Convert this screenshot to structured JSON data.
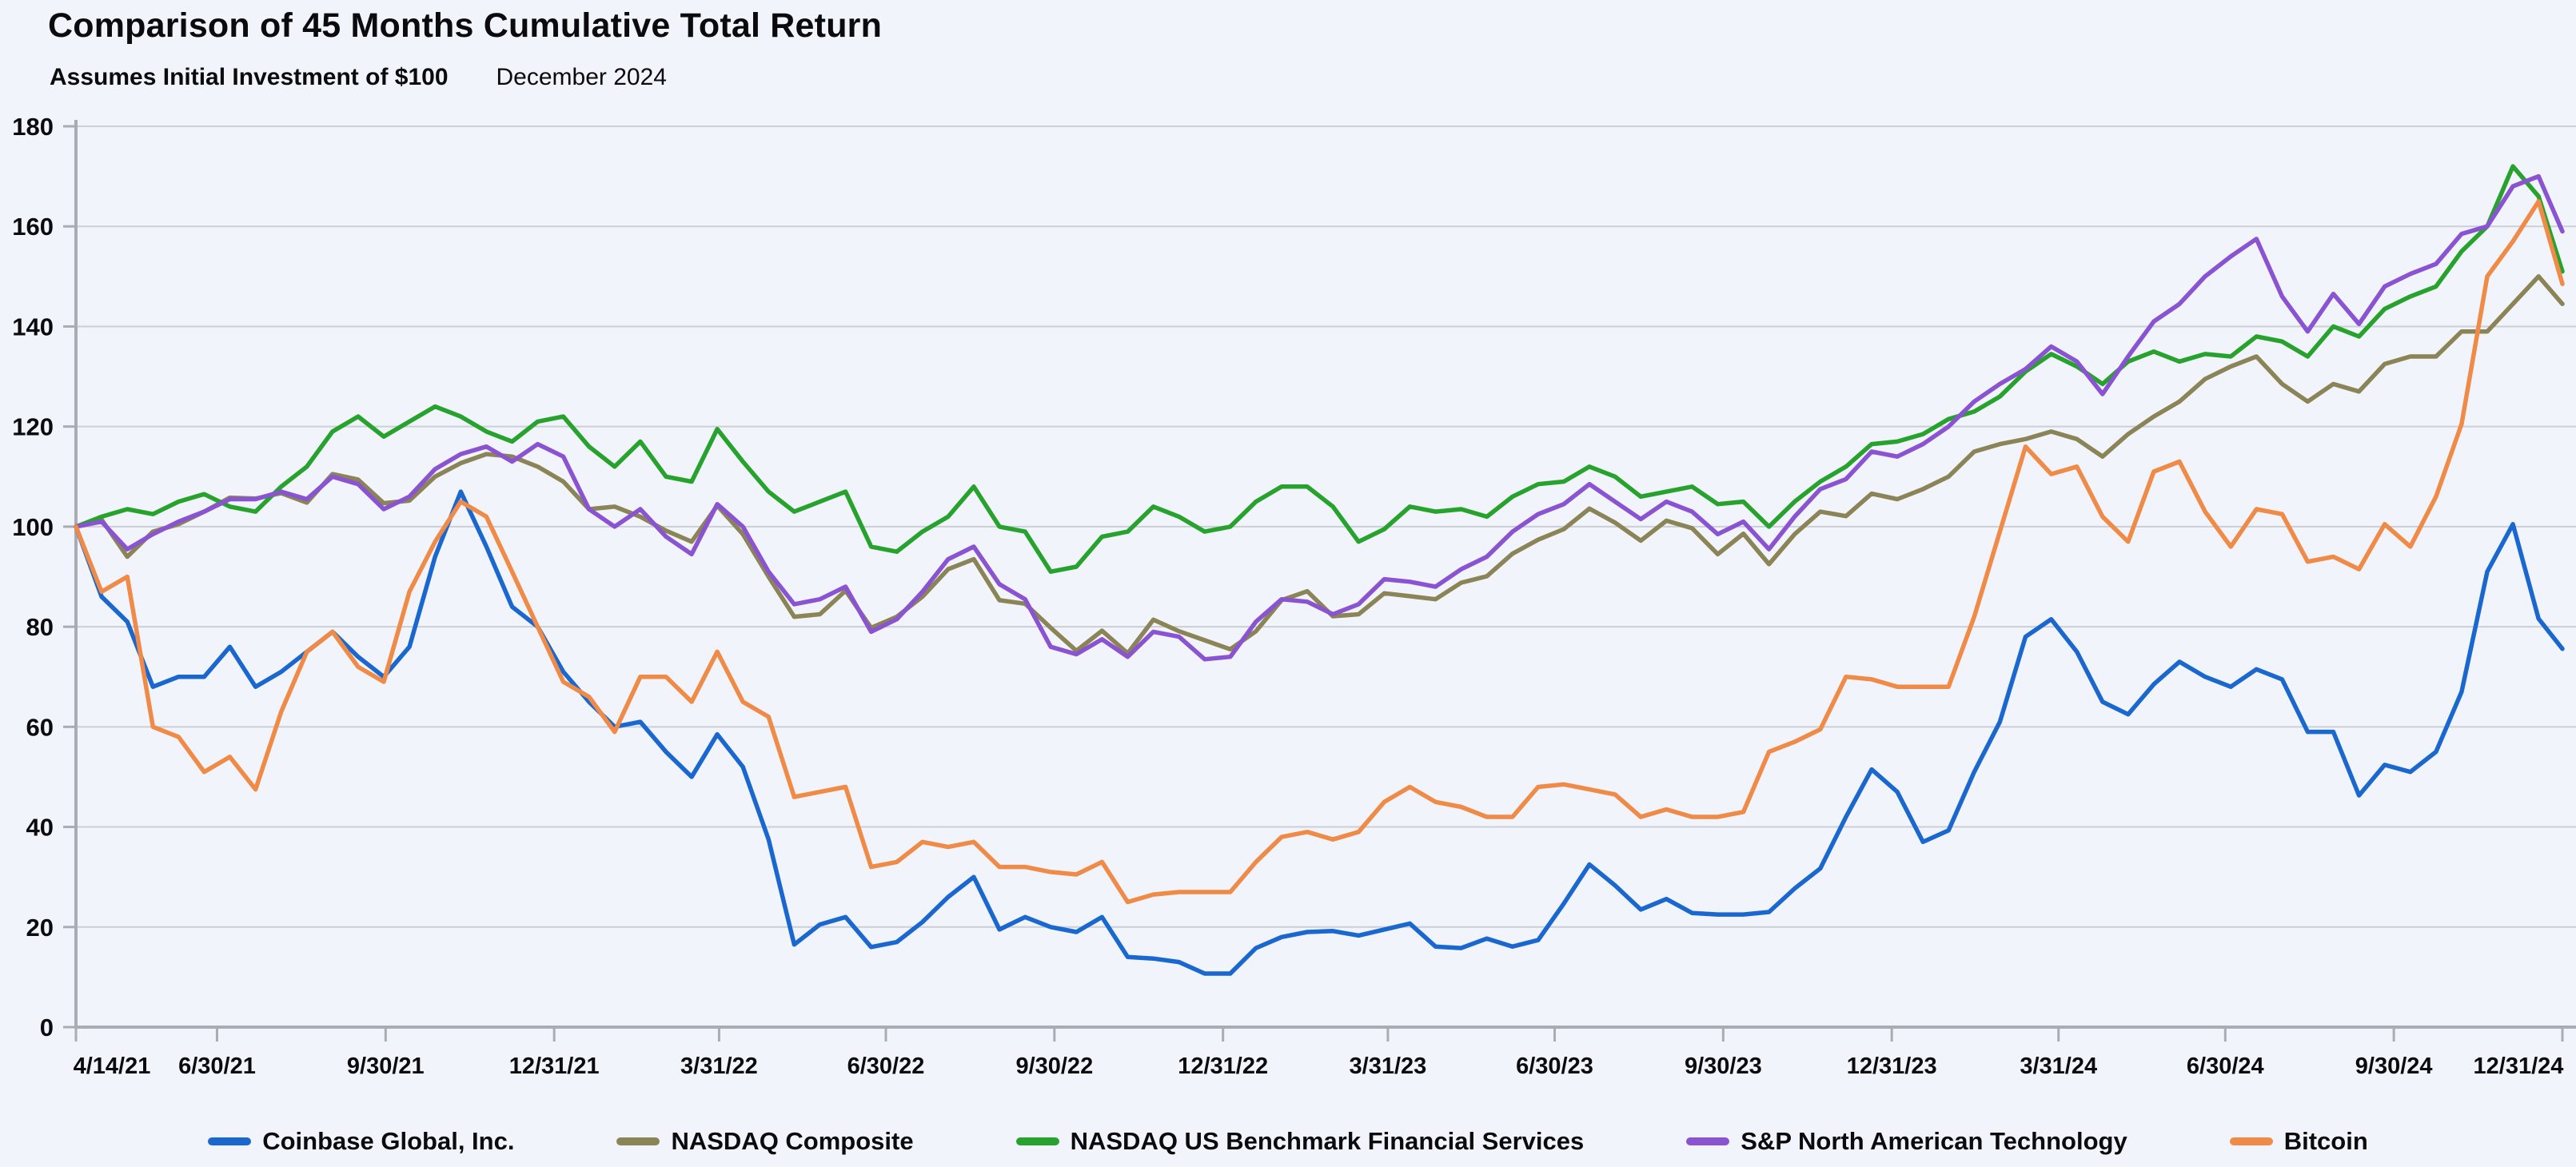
{
  "page": {
    "background": "#F1F4FB"
  },
  "header": {
    "title": "Comparison of 45 Months Cumulative Total Return",
    "subtitle_bold": "Assumes Initial Investment of $100",
    "subtitle_date": "December 2024"
  },
  "chart_data": {
    "type": "line",
    "title": "Comparison of 45 Months Cumulative Total Return",
    "subtitle": "Assumes Initial Investment of $100 — December 2024",
    "xlabel": "",
    "ylabel": "",
    "ylim": [
      0,
      180
    ],
    "ytick_step": 20,
    "grid_on": true,
    "legend_position": "bottom",
    "grid": {
      "line_color": "#CBCFD6",
      "axis_color": "#A8ACB4",
      "tick_color": "#A8ACB4"
    },
    "x_unit": "days since 4/14/21",
    "x_total_days": 1357,
    "xticks": [
      {
        "label": "4/14/21",
        "day": 0
      },
      {
        "label": "6/30/21",
        "day": 77
      },
      {
        "label": "9/30/21",
        "day": 169
      },
      {
        "label": "12/31/21",
        "day": 261
      },
      {
        "label": "3/31/22",
        "day": 351
      },
      {
        "label": "6/30/22",
        "day": 442
      },
      {
        "label": "9/30/22",
        "day": 534
      },
      {
        "label": "12/31/22",
        "day": 626
      },
      {
        "label": "3/31/23",
        "day": 716
      },
      {
        "label": "6/30/23",
        "day": 807
      },
      {
        "label": "9/30/23",
        "day": 899
      },
      {
        "label": "12/31/23",
        "day": 991
      },
      {
        "label": "3/31/24",
        "day": 1082
      },
      {
        "label": "6/30/24",
        "day": 1173
      },
      {
        "label": "9/30/24",
        "day": 1265
      },
      {
        "label": "12/31/24",
        "day": 1357
      }
    ],
    "x_days": [
      0,
      14,
      28,
      42,
      56,
      70,
      84,
      98,
      112,
      126,
      140,
      154,
      168,
      182,
      196,
      210,
      224,
      238,
      252,
      266,
      280,
      294,
      308,
      322,
      336,
      350,
      364,
      378,
      392,
      406,
      420,
      434,
      448,
      462,
      476,
      490,
      504,
      518,
      532,
      546,
      560,
      574,
      588,
      602,
      616,
      630,
      644,
      658,
      672,
      686,
      700,
      714,
      728,
      742,
      756,
      770,
      784,
      798,
      812,
      826,
      840,
      854,
      868,
      882,
      896,
      910,
      924,
      938,
      952,
      966,
      980,
      994,
      1008,
      1022,
      1036,
      1050,
      1064,
      1078,
      1092,
      1106,
      1120,
      1134,
      1148,
      1162,
      1176,
      1190,
      1204,
      1218,
      1232,
      1246,
      1260,
      1274,
      1288,
      1302,
      1316,
      1330,
      1344,
      1357
    ],
    "series": [
      {
        "name": "Coinbase Global, Inc.",
        "color": "#1A67CF",
        "values": [
          100,
          86,
          81,
          68,
          70,
          70,
          76,
          68,
          71,
          75,
          79,
          74,
          70,
          76,
          94,
          107,
          96,
          84,
          80,
          71,
          65,
          60,
          61,
          55,
          50,
          58.5,
          52,
          37.5,
          16.5,
          20.5,
          22,
          16,
          17,
          21,
          26,
          30,
          19.5,
          22,
          20,
          19,
          22,
          14,
          13.7,
          13,
          10.7,
          10.7,
          15.8,
          18,
          19,
          19.2,
          18.3,
          19.5,
          20.7,
          16.1,
          15.8,
          17.7,
          16.1,
          17.4,
          24.7,
          32.5,
          28.3,
          23.5,
          25.6,
          22.8,
          22.5,
          22.5,
          23,
          27.7,
          31.7,
          42,
          51.5,
          47,
          37,
          39.3,
          51,
          61,
          78,
          81.5,
          75,
          65,
          62.5,
          68.5,
          73,
          70,
          68,
          71.5,
          69.5,
          59,
          59,
          46.3,
          52.4,
          51,
          55,
          67,
          91,
          100.5,
          81.6,
          75.6
        ]
      },
      {
        "name": "NASDAQ Composite",
        "color": "#8A8456",
        "values": [
          100,
          101.4,
          94,
          99,
          100.5,
          103,
          105.8,
          105.6,
          106.7,
          104.8,
          110.5,
          109.4,
          104.7,
          105.2,
          110,
          112.7,
          114.5,
          114,
          112,
          109,
          103.5,
          104,
          102,
          99.2,
          97,
          104.2,
          98.5,
          90,
          82,
          82.5,
          87.2,
          79.8,
          82,
          86,
          91.5,
          93.5,
          85.3,
          84.6,
          79.8,
          75.2,
          79.2,
          74.7,
          81.4,
          79.1,
          77.3,
          75.5,
          79.1,
          85.3,
          87.1,
          82.1,
          82.5,
          86.7,
          86.1,
          85.5,
          88.8,
          90.1,
          94.6,
          97.4,
          99.5,
          103.6,
          100.8,
          97.2,
          101.2,
          99.7,
          94.5,
          98.6,
          92.5,
          98.5,
          103,
          102.1,
          106.6,
          105.5,
          107.5,
          110,
          115,
          116.5,
          117.5,
          119,
          117.5,
          114,
          118.5,
          122,
          125,
          129.5,
          132,
          134,
          128.5,
          125,
          128.5,
          127,
          132.5,
          134,
          134,
          139,
          139,
          144.5,
          150,
          144.5
        ]
      },
      {
        "name": "NASDAQ US Benchmark Financial Services",
        "color": "#27A22D",
        "values": [
          100,
          102,
          103.5,
          102.5,
          105,
          106.5,
          104,
          103,
          108,
          112,
          119,
          122,
          118,
          121,
          124,
          122,
          119,
          117,
          121,
          122,
          116,
          112,
          117,
          110,
          109,
          119.5,
          113,
          107,
          103,
          105,
          107,
          96,
          95,
          99,
          102,
          108,
          100,
          99,
          91,
          92,
          98,
          99,
          104,
          102,
          99,
          100,
          105,
          108,
          108,
          104,
          97,
          99.5,
          104,
          103,
          103.5,
          102,
          106,
          108.5,
          109,
          112,
          110,
          106,
          107,
          108,
          104.5,
          105,
          100,
          105,
          109,
          112,
          116.5,
          117,
          118.5,
          121.5,
          123,
          126,
          131,
          134.5,
          132,
          128.5,
          133,
          135,
          133,
          134.5,
          134,
          138,
          137,
          134,
          140,
          138,
          143.5,
          146,
          148,
          155,
          160,
          172,
          166,
          151
        ]
      },
      {
        "name": "S&P North American Technology",
        "color": "#8A53D2",
        "values": [
          100,
          101,
          95.5,
          98.5,
          101,
          103,
          105.5,
          105.5,
          107,
          105.5,
          110,
          108.5,
          103.5,
          106,
          111.5,
          114.5,
          116,
          113,
          116.5,
          114,
          103.5,
          100,
          103.5,
          98,
          94.5,
          104.5,
          100,
          91,
          84.5,
          85.5,
          88,
          79,
          81.5,
          87,
          93.5,
          96,
          88.5,
          85.5,
          76,
          74.5,
          77.5,
          74,
          79,
          78,
          73.5,
          74,
          81,
          85.5,
          85,
          82.5,
          84.5,
          89.5,
          89,
          88,
          91.5,
          94,
          99,
          102.5,
          104.5,
          108.5,
          105,
          101.5,
          105,
          103,
          98.5,
          101,
          95.5,
          102,
          107.5,
          109.5,
          115,
          114,
          116.5,
          120,
          125,
          128.5,
          131.5,
          136,
          133,
          126.5,
          134,
          141,
          144.5,
          150,
          154,
          157.5,
          146,
          139,
          146.5,
          140.5,
          148,
          150.5,
          152.5,
          158.5,
          160,
          168,
          170,
          159
        ]
      },
      {
        "name": "Bitcoin",
        "color": "#EF8A47",
        "values": [
          100,
          87,
          90,
          60,
          58,
          51,
          54,
          47.5,
          63,
          75,
          79,
          72,
          69,
          87,
          97,
          105,
          102,
          91,
          80,
          69,
          66,
          59,
          70,
          70,
          65,
          75,
          65,
          62,
          46,
          47,
          48,
          32,
          33,
          37,
          36,
          37,
          32,
          32,
          31,
          30.5,
          33,
          25,
          26.5,
          27,
          27,
          27,
          33,
          38,
          39,
          37.5,
          39,
          45,
          48,
          45,
          44,
          42,
          42,
          48,
          48.5,
          47.5,
          46.5,
          42,
          43.5,
          42,
          42,
          43,
          55,
          57,
          59.5,
          70,
          69.5,
          68,
          68,
          68,
          82,
          99,
          116,
          110.5,
          112,
          102,
          97,
          111,
          113,
          103,
          96,
          103.5,
          102.5,
          93,
          94,
          91.5,
          100.5,
          96,
          106,
          120.5,
          150,
          157,
          165,
          148.5
        ]
      }
    ]
  }
}
